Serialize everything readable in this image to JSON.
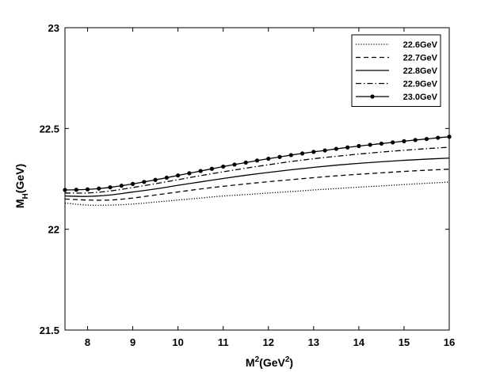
{
  "chart_data": {
    "type": "line",
    "xlabel": {
      "base": "M",
      "sup": "2",
      "open": "(GeV",
      "sup2": "2",
      "close": ")"
    },
    "ylabel": {
      "base": "M",
      "sub": "H",
      "rest": "(GeV)"
    },
    "xlim": [
      7.5,
      16
    ],
    "ylim": [
      21.5,
      23
    ],
    "xticks": [
      8,
      9,
      10,
      11,
      12,
      13,
      14,
      15,
      16
    ],
    "yticks": [
      21.5,
      22,
      22.5,
      23
    ],
    "xtick_labels": [
      "8",
      "9",
      "10",
      "11",
      "12",
      "13",
      "14",
      "15",
      "16"
    ],
    "ytick_labels": [
      "21.5",
      "22",
      "22.5",
      "23"
    ],
    "legend_position": "top-right",
    "grid": false,
    "series": [
      {
        "name": "22.6GeV",
        "style": "dotted",
        "x": [
          7.5,
          8,
          8.5,
          9,
          9.5,
          10,
          10.5,
          11,
          11.5,
          12,
          12.5,
          13,
          13.5,
          14,
          14.5,
          15,
          15.5,
          16
        ],
        "y": [
          22.13,
          22.12,
          22.12,
          22.125,
          22.135,
          22.145,
          22.155,
          22.165,
          22.172,
          22.18,
          22.187,
          22.195,
          22.202,
          22.209,
          22.215,
          22.222,
          22.228,
          22.234
        ]
      },
      {
        "name": "22.7GeV",
        "style": "dashed",
        "x": [
          7.5,
          8,
          8.5,
          9,
          9.5,
          10,
          10.5,
          11,
          11.5,
          12,
          12.5,
          13,
          13.5,
          14,
          14.5,
          15,
          15.5,
          16
        ],
        "y": [
          22.15,
          22.145,
          22.145,
          22.155,
          22.17,
          22.185,
          22.2,
          22.213,
          22.225,
          22.236,
          22.246,
          22.256,
          22.265,
          22.273,
          22.28,
          22.287,
          22.293,
          22.298
        ]
      },
      {
        "name": "22.8GeV",
        "style": "solid",
        "x": [
          7.5,
          8,
          8.5,
          9,
          9.5,
          10,
          10.5,
          11,
          11.5,
          12,
          12.5,
          13,
          13.5,
          14,
          14.5,
          15,
          15.5,
          16
        ],
        "y": [
          22.165,
          22.163,
          22.17,
          22.185,
          22.2,
          22.218,
          22.235,
          22.252,
          22.268,
          22.282,
          22.295,
          22.307,
          22.318,
          22.327,
          22.335,
          22.342,
          22.348,
          22.353
        ]
      },
      {
        "name": "22.9GeV",
        "style": "dashdot",
        "x": [
          7.5,
          8,
          8.5,
          9,
          9.5,
          10,
          10.5,
          11,
          11.5,
          12,
          12.5,
          13,
          13.5,
          14,
          14.5,
          15,
          15.5,
          16
        ],
        "y": [
          22.18,
          22.18,
          22.19,
          22.207,
          22.226,
          22.246,
          22.266,
          22.285,
          22.303,
          22.32,
          22.336,
          22.35,
          22.362,
          22.373,
          22.383,
          22.392,
          22.4,
          22.407
        ]
      },
      {
        "name": "23.0GeV",
        "style": "solid-marker",
        "x": [
          7.5,
          7.75,
          8,
          8.25,
          8.5,
          8.75,
          9,
          9.25,
          9.5,
          9.75,
          10,
          10.25,
          10.5,
          10.75,
          11,
          11.25,
          11.5,
          11.75,
          12,
          12.25,
          12.5,
          12.75,
          13,
          13.25,
          13.5,
          13.75,
          14,
          14.25,
          14.5,
          14.75,
          15,
          15.25,
          15.5,
          15.75,
          16
        ],
        "y": [
          22.195,
          22.196,
          22.198,
          22.202,
          22.208,
          22.216,
          22.225,
          22.235,
          22.245,
          22.256,
          22.267,
          22.278,
          22.289,
          22.3,
          22.311,
          22.321,
          22.331,
          22.341,
          22.35,
          22.359,
          22.368,
          22.376,
          22.384,
          22.391,
          22.399,
          22.406,
          22.413,
          22.419,
          22.425,
          22.431,
          22.437,
          22.443,
          22.448,
          22.454,
          22.459
        ]
      }
    ]
  }
}
